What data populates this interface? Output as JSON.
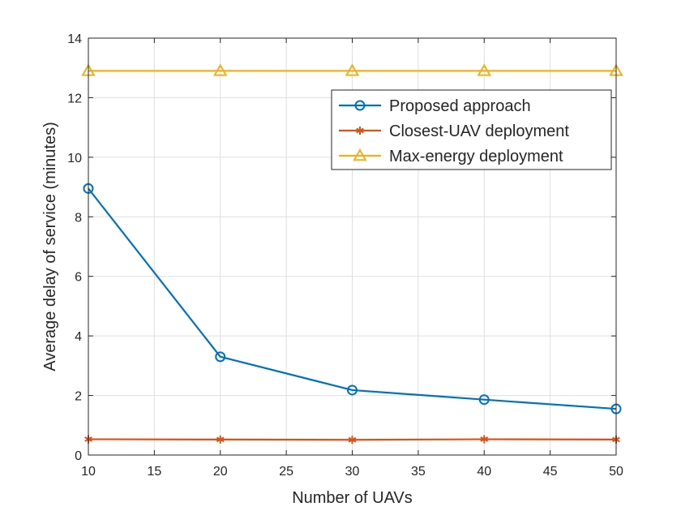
{
  "chart_data": {
    "type": "line",
    "title": "",
    "xlabel": "Number of UAVs",
    "ylabel": "Average delay of service (minutes)",
    "xlim": [
      10,
      50
    ],
    "ylim": [
      0,
      14
    ],
    "xticks": [
      10,
      15,
      20,
      25,
      30,
      35,
      40,
      45,
      50
    ],
    "yticks": [
      0,
      2,
      4,
      6,
      8,
      10,
      12,
      14
    ],
    "grid": true,
    "legend_position": "top-right",
    "x": [
      10,
      20,
      30,
      40,
      50
    ],
    "series": [
      {
        "name": "Proposed approach",
        "values": [
          8.95,
          3.3,
          2.18,
          1.86,
          1.55
        ],
        "color": "#0072BD",
        "marker": "circle"
      },
      {
        "name": "Closest-UAV deployment",
        "values": [
          0.53,
          0.52,
          0.51,
          0.53,
          0.52
        ],
        "color": "#D95319",
        "marker": "asterisk"
      },
      {
        "name": "Max-energy deployment",
        "values": [
          12.9,
          12.9,
          12.9,
          12.9,
          12.9
        ],
        "color": "#EDB120",
        "marker": "triangle"
      }
    ]
  }
}
